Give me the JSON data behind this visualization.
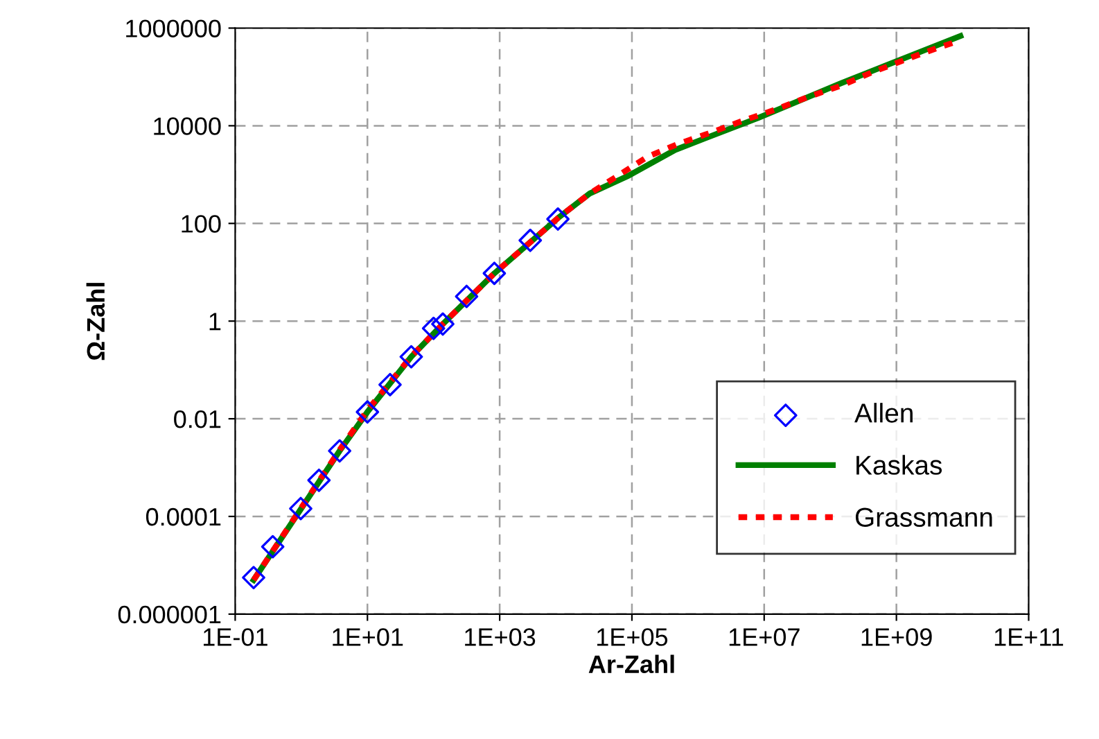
{
  "chart_data": {
    "type": "line",
    "xlabel": "Ar-Zahl",
    "ylabel": "Ω-Zahl",
    "log": "xy",
    "grid": true,
    "legend": "bottom right",
    "xlim": [
      0.1,
      100000000000
    ],
    "ylim": [
      1e-06,
      1000000
    ],
    "xticks": [
      {
        "value": 0.1,
        "label": "1E-01"
      },
      {
        "value": 10,
        "label": "1E+01"
      },
      {
        "value": 1000,
        "label": "1E+03"
      },
      {
        "value": 100000,
        "label": "1E+05"
      },
      {
        "value": 10000000,
        "label": "1E+07"
      },
      {
        "value": 1000000000,
        "label": "1E+09"
      },
      {
        "value": 100000000000,
        "label": "1E+11"
      }
    ],
    "yticks": [
      {
        "value": 1e-06,
        "label": "0.000001"
      },
      0.0001,
      0.01,
      1,
      100,
      10000,
      1000000
    ],
    "series": [
      {
        "name": "Allen",
        "type": "scatter",
        "color": "#0000ff",
        "marker": "diamond",
        "x": [
          0.19,
          0.37,
          0.98,
          1.85,
          3.8,
          10,
          22,
          46,
          100,
          138,
          316,
          830,
          2900,
          7600
        ],
        "values": [
          5.6e-06,
          2.4e-05,
          0.000145,
          0.00055,
          0.0022,
          0.0138,
          0.05,
          0.186,
          0.71,
          0.87,
          3.2,
          9.5,
          45,
          123
        ]
      },
      {
        "name": "Kaskas",
        "color": "#008000",
        "line_style": "solid",
        "x": [
          0.19,
          0.98,
          3.8,
          10,
          46,
          138,
          830,
          8100,
          23000,
          89000,
          450000,
          8100000,
          145000000,
          9300000000
        ],
        "values": [
          5e-06,
          0.00014,
          0.0022,
          0.0138,
          0.186,
          0.87,
          9.5,
          138,
          410,
          950,
          3200,
          14500,
          74000,
          690000
        ]
      },
      {
        "name": "Grassmann",
        "color": "#ff0000",
        "line_style": "dotted",
        "x": [
          0.19,
          0.98,
          3.8,
          10,
          46,
          138,
          830,
          8100,
          23000,
          60000,
          170000,
          490000,
          1500000,
          4700000,
          15500000,
          44000000,
          145000000,
          420000000,
          1400000000,
          4300000000,
          9000000000
        ],
        "values": [
          5e-06,
          0.000145,
          0.0023,
          0.015,
          0.19,
          0.87,
          9.5,
          138,
          410,
          930,
          2300,
          4200,
          7100,
          12600,
          21900,
          38000,
          66000,
          123000,
          229000,
          398000,
          550000
        ]
      }
    ]
  }
}
